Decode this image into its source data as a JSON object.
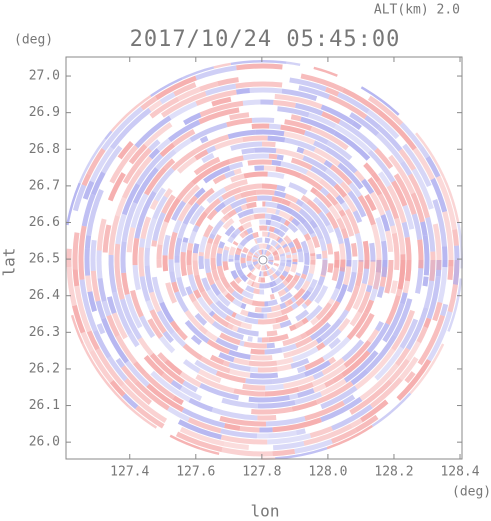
{
  "chart_data": {
    "type": "ppi",
    "title": "2017/10/24 05:45:00",
    "subtitle": "ALT(km) 2.0",
    "x_label": "lon",
    "y_label": "lat",
    "x_unit": "(deg)",
    "y_unit": "(deg)",
    "xlim": [
      127.207,
      128.406
    ],
    "ylim": [
      25.954,
      27.052
    ],
    "xticks": [
      127.4,
      127.6,
      127.8,
      {
        "value": 128,
        "label": "128.0"
      },
      128.2,
      128.4
    ],
    "yticks": [
      {
        "value": 26,
        "label": "26.0"
      },
      26.1,
      26.2,
      26.3,
      26.4,
      26.5,
      26.6,
      26.7,
      26.8,
      26.9,
      {
        "value": 27,
        "label": "27.0"
      }
    ]
  }
}
